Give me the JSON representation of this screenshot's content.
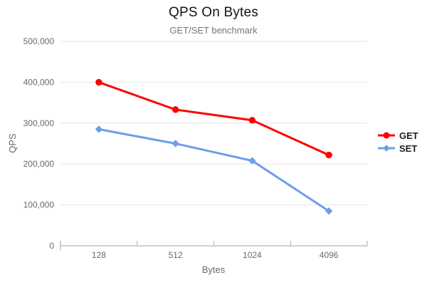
{
  "chart_data": {
    "type": "line",
    "title": "QPS On Bytes",
    "subtitle": "GET/SET benchmark",
    "xlabel": "Bytes",
    "ylabel": "QPS",
    "categories": [
      "128",
      "512",
      "1024",
      "4096"
    ],
    "series": [
      {
        "name": "GET",
        "color": "#ff0000",
        "marker": "circle",
        "values": [
          400000,
          333000,
          307000,
          222000
        ]
      },
      {
        "name": "SET",
        "color": "#6d9eeb",
        "marker": "diamond",
        "values": [
          285000,
          250000,
          208000,
          85000
        ]
      }
    ],
    "ylim": [
      0,
      500000
    ],
    "ytick_step": 100000,
    "ytick_labels": [
      "0",
      "100,000",
      "200,000",
      "300,000",
      "400,000",
      "500,000"
    ],
    "grid": true,
    "legend_position": "right",
    "colors": {
      "grid_line": "#e6e6e6",
      "axis_line": "#b6c3d4",
      "tick_text": "#66696d",
      "title_text": "#141414",
      "subtitle_text": "#757575",
      "legend_text": "#1f1f1f"
    }
  }
}
